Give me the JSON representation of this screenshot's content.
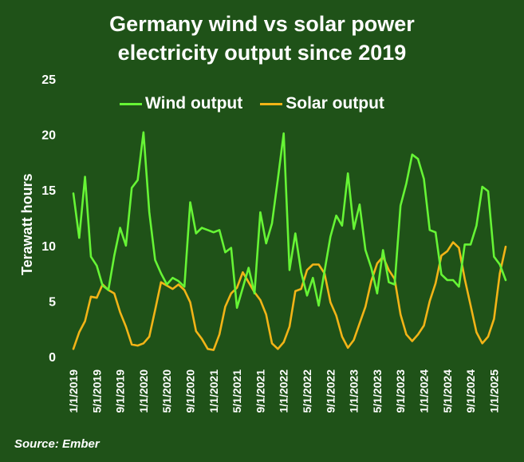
{
  "colors": {
    "background": "#1f5218",
    "wind": "#66f535",
    "solar": "#f2b417",
    "text": "#ffffff"
  },
  "chart_data": {
    "type": "line",
    "title": [
      "Germany wind vs solar power",
      "electricity output since 2019"
    ],
    "ylabel": "Terawatt hours",
    "xlabel": "",
    "ylim": [
      0,
      25
    ],
    "yticks": [
      0,
      5,
      10,
      15,
      20,
      25
    ],
    "grid": false,
    "legend": "top",
    "x_tick_labels": [
      "1/1/2019",
      "5/1/2019",
      "9/1/2019",
      "1/1/2020",
      "5/1/2020",
      "9/1/2020",
      "1/1/2021",
      "5/1/2021",
      "9/1/2021",
      "1/1/2022",
      "5/1/2022",
      "9/1/2022",
      "1/1/2023",
      "5/1/2023",
      "9/1/2023",
      "1/1/2024",
      "5/1/2024",
      "9/1/2024",
      "1/1/2025"
    ],
    "x_tick_every_months": 4,
    "start": "2019-01",
    "series": [
      {
        "name": "Wind output",
        "color": "#66f535",
        "values": [
          14.7,
          10.7,
          16.2,
          9.0,
          8.2,
          6.4,
          6.0,
          9.1,
          11.6,
          10.0,
          15.2,
          15.9,
          20.2,
          13.0,
          8.7,
          7.5,
          6.5,
          7.1,
          6.8,
          6.3,
          13.9,
          11.1,
          11.6,
          11.4,
          11.2,
          11.4,
          9.4,
          9.8,
          4.4,
          6.2,
          8.0,
          5.7,
          13.0,
          10.2,
          12.0,
          16.0,
          20.1,
          7.8,
          11.1,
          7.6,
          5.5,
          7.1,
          4.6,
          7.7,
          10.8,
          12.7,
          11.8,
          16.5,
          11.5,
          13.7,
          9.6,
          8.0,
          5.7,
          9.6,
          6.7,
          6.5,
          13.6,
          15.6,
          18.2,
          17.8,
          16.0,
          11.4,
          11.2,
          7.4,
          6.9,
          6.9,
          6.3,
          10.1,
          10.1,
          11.8,
          15.3,
          14.9,
          9.0,
          8.3,
          6.9
        ]
      },
      {
        "name": "Solar output",
        "color": "#f2b417",
        "values": [
          0.7,
          2.2,
          3.2,
          5.4,
          5.3,
          6.5,
          6.0,
          5.7,
          4.0,
          2.7,
          1.1,
          1.0,
          1.2,
          1.8,
          4.2,
          6.7,
          6.4,
          6.1,
          6.5,
          6.0,
          4.9,
          2.3,
          1.6,
          0.7,
          0.6,
          2.0,
          4.5,
          5.7,
          6.2,
          7.6,
          6.7,
          5.8,
          5.1,
          3.8,
          1.2,
          0.7,
          1.3,
          2.7,
          5.9,
          6.1,
          7.8,
          8.3,
          8.3,
          7.5,
          4.9,
          3.7,
          1.8,
          0.8,
          1.5,
          3.0,
          4.5,
          6.8,
          8.4,
          9.0,
          7.8,
          7.0,
          3.8,
          2.0,
          1.4,
          2.0,
          2.8,
          5.0,
          6.6,
          9.1,
          9.5,
          10.3,
          9.8,
          7.0,
          4.6,
          2.2,
          1.2,
          1.8,
          3.4,
          7.5,
          9.9
        ]
      }
    ]
  },
  "source": "Source: Ember"
}
